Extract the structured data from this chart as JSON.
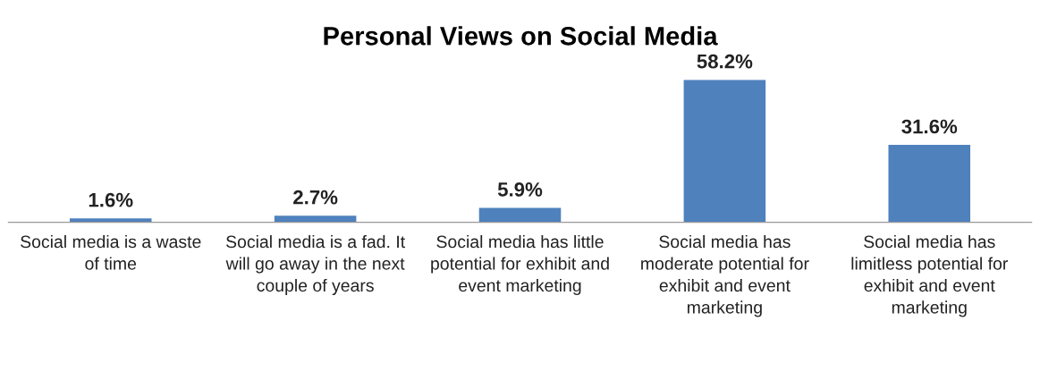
{
  "chart_data": {
    "type": "bar",
    "title": "Personal Views on Social Media",
    "categories": [
      "Social media is a waste of time",
      "Social media is a fad. It will go away in the next couple of years",
      "Social media has little potential for exhibit and event marketing",
      "Social media has moderate potential for exhibit and event marketing",
      "Social media has limitless potential for exhibit and event marketing"
    ],
    "values": [
      1.6,
      2.7,
      5.9,
      58.2,
      31.6
    ],
    "value_labels": [
      "1.6%",
      "2.7%",
      "5.9%",
      "58.2%",
      "31.6%"
    ],
    "color": "#4f81bd"
  }
}
